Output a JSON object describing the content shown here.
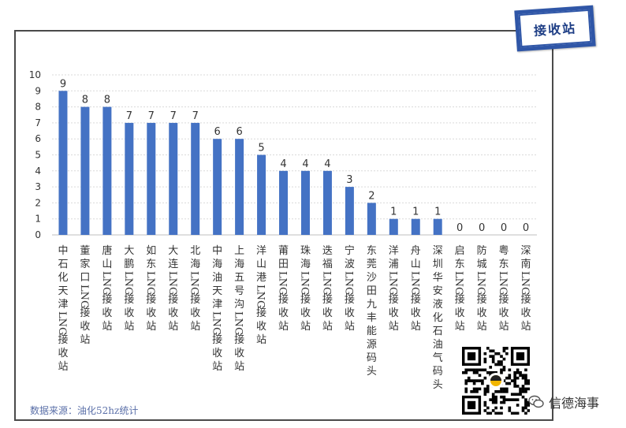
{
  "stamp": {
    "text": "接收站"
  },
  "source": {
    "text": "数据来源：油化52hz统计"
  },
  "brand": {
    "name": "信德海事",
    "icon": "wechat-icon"
  },
  "qr": {
    "icon": "qr-code-icon"
  },
  "colors": {
    "bar": "#4472c4",
    "grid": "#d9d9d9",
    "text": "#333333",
    "stamp": "#2f56a7"
  },
  "chart_data": {
    "type": "bar",
    "categories": [
      "中石化天津LNG接收站",
      "董家口LNG接收站",
      "唐山LNG接收站",
      "大鹏LNG接收站",
      "如东LNG接收站",
      "大连LNG接收站",
      "北海LNG接收站",
      "中海油天津LNG接收站",
      "上海五号沟LNG接收站",
      "洋山港LNG接收站",
      "莆田LNG接收站",
      "珠海LNG接收站",
      "迭福LNG接收站",
      "宁波LNG接收站",
      "东莞沙田九丰能源码头",
      "洋浦LNG接收站",
      "舟山LNG接收站",
      "深圳华安液化石油气码头",
      "启东LNG接收站",
      "防城LNG接收站",
      "粤东LNG接收站",
      "深南LNG接收站"
    ],
    "values": [
      9,
      8,
      8,
      7,
      7,
      7,
      7,
      6,
      6,
      5,
      4,
      4,
      4,
      3,
      2,
      1,
      1,
      1,
      0,
      0,
      0,
      0
    ],
    "yticks": [
      "0",
      "1",
      "2",
      "3",
      "4",
      "5",
      "6",
      "7",
      "8",
      "9",
      "10"
    ],
    "ylim": [
      0,
      10
    ],
    "grid": true,
    "legend": "none"
  }
}
